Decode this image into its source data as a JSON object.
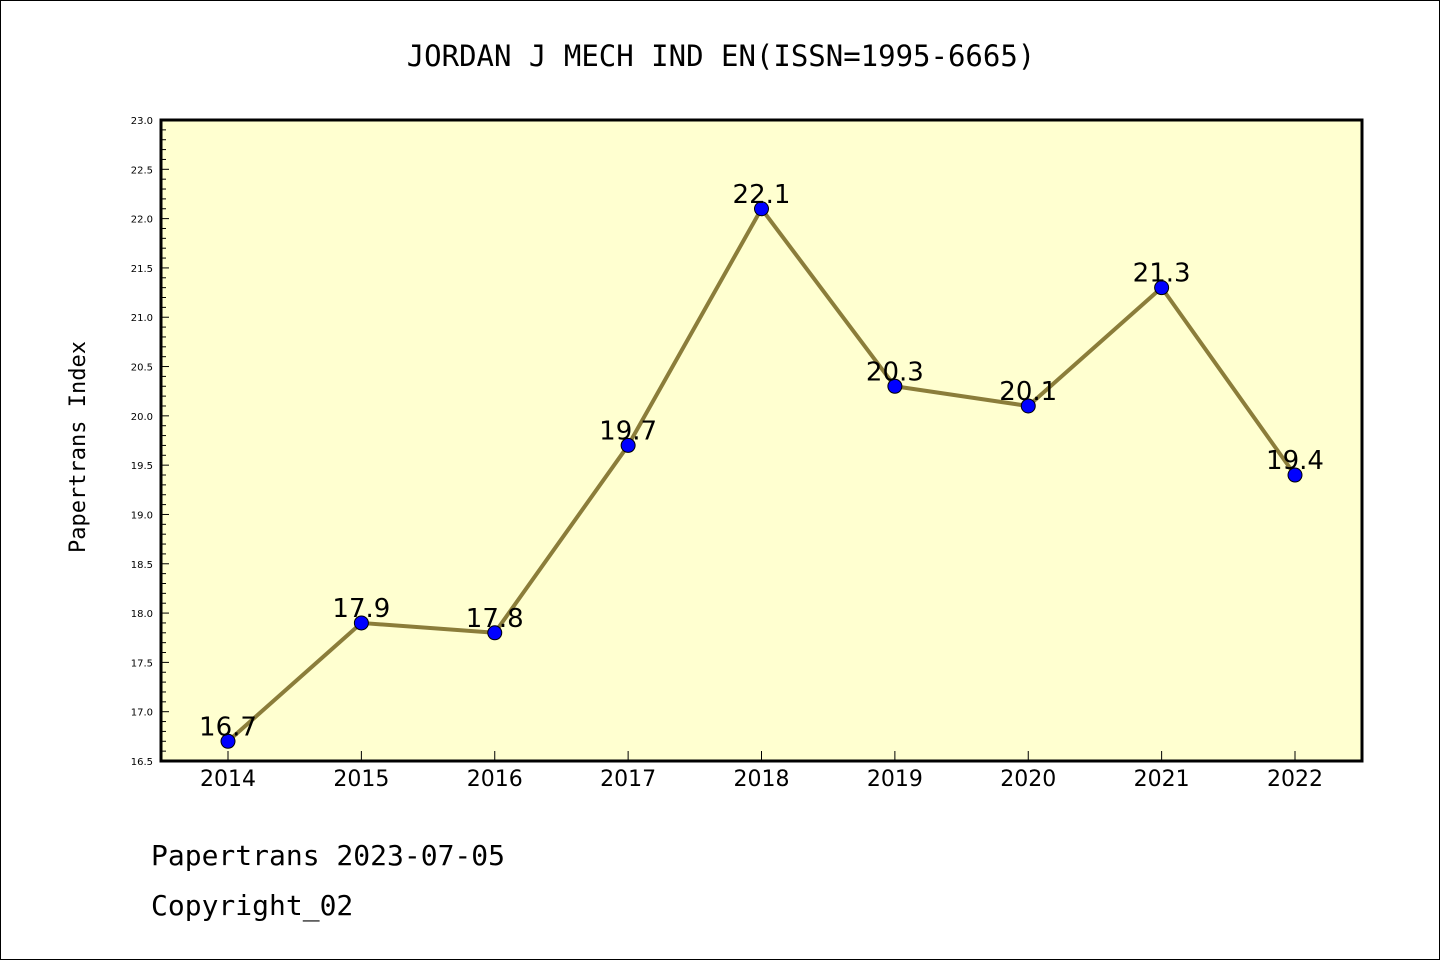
{
  "chart_data": {
    "type": "line",
    "title": "JORDAN J MECH IND EN(ISSN=1995-6665)",
    "ylabel": "Papertrans Index",
    "xlabel": "",
    "categories": [
      "2014",
      "2015",
      "2016",
      "2017",
      "2018",
      "2019",
      "2020",
      "2021",
      "2022"
    ],
    "values": [
      16.7,
      17.9,
      17.8,
      19.7,
      22.1,
      20.3,
      20.1,
      21.3,
      19.4
    ],
    "data_labels": [
      "16.7",
      "17.9",
      "17.8",
      "19.7",
      "22.1",
      "20.3",
      "20.1",
      "21.3",
      "19.4"
    ],
    "ylim": [
      16.5,
      23.0
    ],
    "yticks": [
      "16.5",
      "17.0",
      "17.5",
      "18.0",
      "18.5",
      "19.0",
      "19.5",
      "20.0",
      "20.5",
      "21.0",
      "21.5",
      "22.0",
      "22.5",
      "23.0"
    ],
    "grid": false,
    "colors": {
      "plot_background": "#ffffd0",
      "line": "#8b7d3a",
      "marker": "#0000ff"
    }
  },
  "footer": {
    "line1": "Papertrans 2023-07-05",
    "line2": "Copyright_02"
  }
}
